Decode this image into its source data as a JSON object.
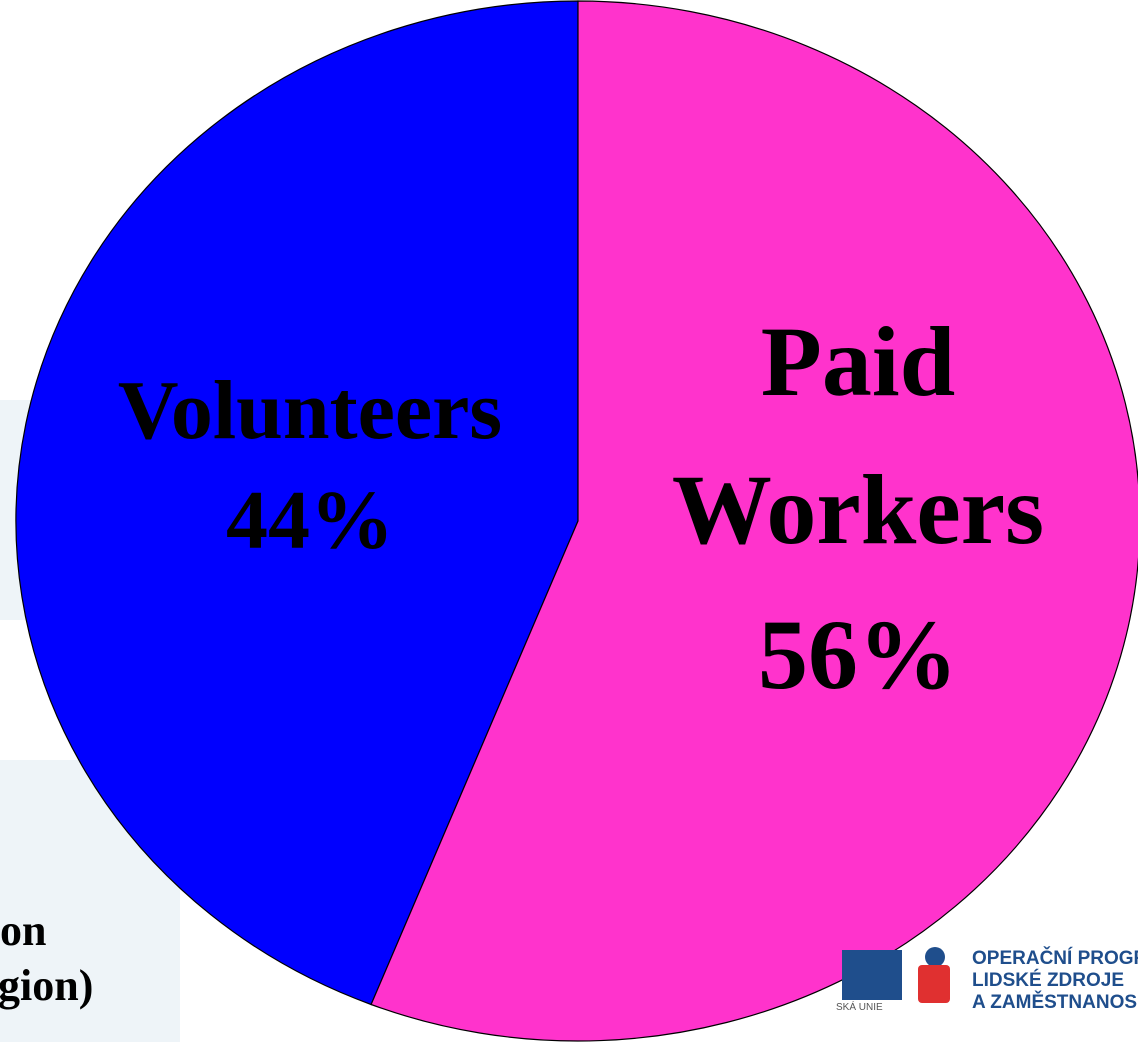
{
  "chart_data": {
    "type": "pie",
    "title": "",
    "slices": [
      {
        "label": "Volunteers",
        "value": 44,
        "value_text": "44%",
        "color": "#0000ff"
      },
      {
        "label": "Paid",
        "label_line2": "Workers",
        "value": 56,
        "value_text": "56%",
        "color": "#ff33cc"
      }
    ]
  },
  "background_text": {
    "line1": "on",
    "line2": "gion)"
  },
  "logo": {
    "line1": "OPERAČNÍ PROGR",
    "line2": "LIDSKÉ ZDROJE",
    "line3": "A ZAMĚSTNANOS",
    "eu_caption": "SKÁ UNIE"
  },
  "colors": {
    "background_shape": "#eef4f8",
    "logo_blue": "#1f4e8c",
    "logo_red": "#e03030"
  }
}
